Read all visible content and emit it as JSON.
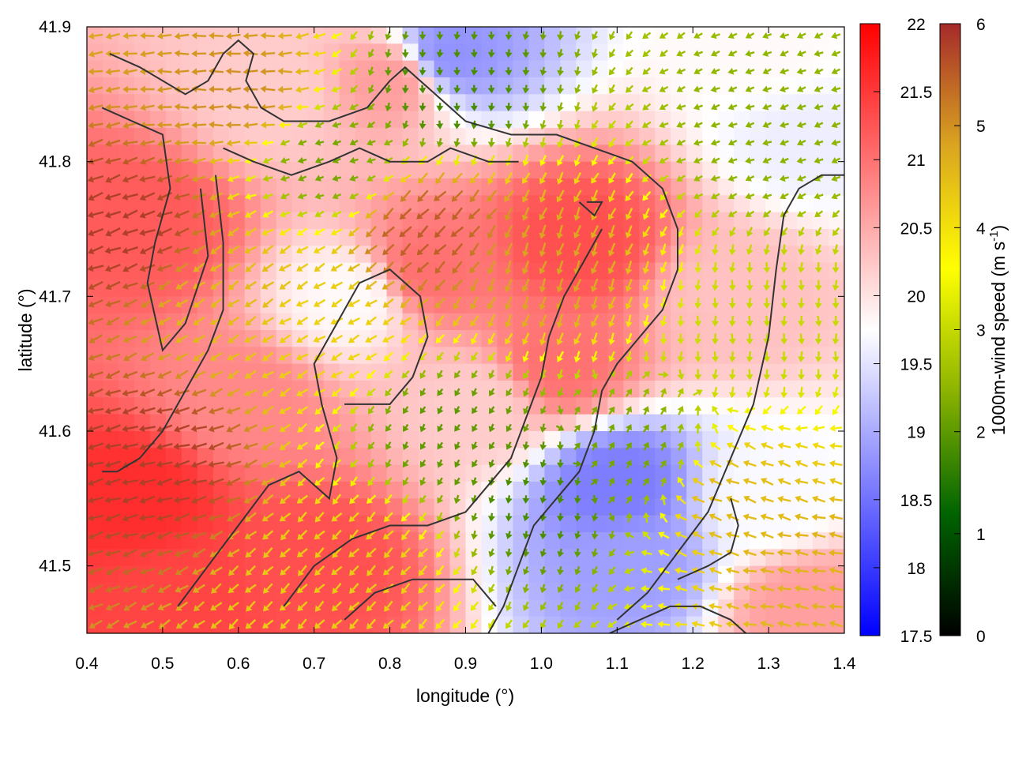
{
  "chart_data": {
    "type": "heatmap",
    "description_type": "temperature field with wind vectors (arrows) and contour lines",
    "xlabel": "longitude (°)",
    "ylabel": "latitude (°)",
    "xlim": [
      0.4,
      1.4
    ],
    "ylim": [
      41.45,
      41.9
    ],
    "x_ticks": [
      0.4,
      0.5,
      0.6,
      0.7,
      0.8,
      0.9,
      1.0,
      1.1,
      1.2,
      1.3,
      1.4
    ],
    "x_tick_labels": [
      "0.4",
      "0.5",
      "0.6",
      "0.7",
      "0.8",
      "0.9",
      "1.0",
      "1.1",
      "1.2",
      "1.3",
      "1.4"
    ],
    "y_ticks": [
      41.5,
      41.6,
      41.7,
      41.8,
      41.9
    ],
    "y_tick_labels": [
      "41.5",
      "41.6",
      "41.7",
      "41.8",
      "41.9"
    ],
    "colorbar_temperature": {
      "min": 17.5,
      "max": 22,
      "ticks": [
        17.5,
        18,
        18.5,
        19,
        19.5,
        20,
        20.5,
        21,
        21.5,
        22
      ],
      "tick_labels": [
        "17.5",
        "18",
        "18.5",
        "19",
        "19.5",
        "20",
        "20.5",
        "21",
        "21.5",
        "22"
      ],
      "colors": [
        "#0000ff",
        "#ffffff",
        "#ff0000"
      ]
    },
    "colorbar_wind": {
      "label": "1000m-wind speed (m s",
      "label_sup": "-1",
      "label_end": ")",
      "min": 0,
      "max": 6,
      "ticks": [
        0,
        1,
        2,
        3,
        4,
        5,
        6
      ],
      "tick_labels": [
        "0",
        "1",
        "2",
        "3",
        "4",
        "5",
        "6"
      ],
      "colors": [
        "#000000",
        "#006400",
        "#8cb400",
        "#ffff00",
        "#daa520",
        "#a52a2a"
      ]
    },
    "temperature_regions": [
      {
        "lon": 0.48,
        "lat": 41.75,
        "t": 21.2
      },
      {
        "lon": 0.47,
        "lat": 41.55,
        "t": 21.6
      },
      {
        "lon": 0.52,
        "lat": 41.48,
        "t": 21.4
      },
      {
        "lon": 0.7,
        "lat": 41.5,
        "t": 21.3
      },
      {
        "lon": 0.75,
        "lat": 41.7,
        "t": 19.8
      },
      {
        "lon": 0.85,
        "lat": 41.72,
        "t": 21.0
      },
      {
        "lon": 0.88,
        "lat": 41.88,
        "t": 18.8
      },
      {
        "lon": 1.05,
        "lat": 41.74,
        "t": 21.3
      },
      {
        "lon": 1.02,
        "lat": 41.65,
        "t": 21.0
      },
      {
        "lon": 0.92,
        "lat": 41.62,
        "t": 20.2
      },
      {
        "lon": 1.1,
        "lat": 41.56,
        "t": 18.6
      },
      {
        "lon": 1.12,
        "lat": 41.5,
        "t": 18.9
      },
      {
        "lon": 1.25,
        "lat": 41.7,
        "t": 20.3
      },
      {
        "lon": 1.3,
        "lat": 41.55,
        "t": 19.7
      },
      {
        "lon": 1.35,
        "lat": 41.82,
        "t": 19.6
      },
      {
        "lon": 1.3,
        "lat": 41.88,
        "t": 19.8
      },
      {
        "lon": 0.8,
        "lat": 41.86,
        "t": 20.6
      },
      {
        "lon": 0.6,
        "lat": 41.62,
        "t": 20.8
      },
      {
        "lon": 1.35,
        "lat": 41.47,
        "t": 20.6
      },
      {
        "lon": 0.65,
        "lat": 41.85,
        "t": 20.2
      }
    ],
    "wind_regions": [
      {
        "lon": 0.45,
        "lat": 41.75,
        "speed": 5.8,
        "dir": 200
      },
      {
        "lon": 0.48,
        "lat": 41.58,
        "speed": 5.8,
        "dir": 195
      },
      {
        "lon": 0.6,
        "lat": 41.7,
        "speed": 4.5,
        "dir": 215
      },
      {
        "lon": 0.7,
        "lat": 41.68,
        "speed": 4.2,
        "dir": 210
      },
      {
        "lon": 0.72,
        "lat": 41.8,
        "speed": 2.2,
        "dir": 200
      },
      {
        "lon": 0.85,
        "lat": 41.75,
        "speed": 5.5,
        "dir": 225
      },
      {
        "lon": 0.88,
        "lat": 41.85,
        "speed": 1.8,
        "dir": 270
      },
      {
        "lon": 1.0,
        "lat": 41.72,
        "speed": 4.8,
        "dir": 250
      },
      {
        "lon": 0.88,
        "lat": 41.6,
        "speed": 2.0,
        "dir": 240
      },
      {
        "lon": 1.0,
        "lat": 41.55,
        "speed": 1.8,
        "dir": 260
      },
      {
        "lon": 1.12,
        "lat": 41.58,
        "speed": 2.2,
        "dir": 60
      },
      {
        "lon": 1.25,
        "lat": 41.55,
        "speed": 4.5,
        "dir": 160
      },
      {
        "lon": 1.3,
        "lat": 41.68,
        "speed": 3.0,
        "dir": 270
      },
      {
        "lon": 1.3,
        "lat": 41.82,
        "speed": 2.4,
        "dir": 200
      },
      {
        "lon": 1.35,
        "lat": 41.5,
        "speed": 4.6,
        "dir": 170
      },
      {
        "lon": 0.75,
        "lat": 41.5,
        "speed": 4.3,
        "dir": 225
      },
      {
        "lon": 0.6,
        "lat": 41.85,
        "speed": 5.0,
        "dir": 180
      }
    ],
    "contours": [
      [
        [
          0.43,
          41.88
        ],
        [
          0.47,
          41.87
        ],
        [
          0.53,
          41.85
        ],
        [
          0.56,
          41.86
        ],
        [
          0.58,
          41.88
        ],
        [
          0.6,
          41.89
        ],
        [
          0.62,
          41.88
        ],
        [
          0.61,
          41.86
        ],
        [
          0.63,
          41.84
        ],
        [
          0.66,
          41.83
        ],
        [
          0.72,
          41.83
        ],
        [
          0.77,
          41.84
        ],
        [
          0.8,
          41.86
        ],
        [
          0.82,
          41.87
        ],
        [
          0.86,
          41.85
        ],
        [
          0.9,
          41.83
        ],
        [
          0.96,
          41.82
        ],
        [
          1.02,
          41.82
        ],
        [
          1.07,
          41.81
        ],
        [
          1.12,
          41.8
        ],
        [
          1.16,
          41.78
        ],
        [
          1.18,
          41.75
        ],
        [
          1.18,
          41.72
        ],
        [
          1.16,
          41.69
        ],
        [
          1.13,
          41.67
        ],
        [
          1.1,
          41.65
        ],
        [
          1.08,
          41.63
        ],
        [
          1.07,
          41.6
        ],
        [
          1.05,
          41.57
        ],
        [
          1.02,
          41.55
        ],
        [
          0.99,
          41.53
        ],
        [
          0.97,
          41.5
        ],
        [
          0.95,
          41.47
        ],
        [
          0.93,
          41.45
        ]
      ],
      [
        [
          0.58,
          41.81
        ],
        [
          0.62,
          41.8
        ],
        [
          0.67,
          41.79
        ],
        [
          0.72,
          41.8
        ],
        [
          0.76,
          41.81
        ],
        [
          0.8,
          41.8
        ],
        [
          0.85,
          41.8
        ],
        [
          0.88,
          41.81
        ],
        [
          0.93,
          41.8
        ],
        [
          0.97,
          41.8
        ]
      ],
      [
        [
          0.57,
          41.79
        ],
        [
          0.58,
          41.74
        ],
        [
          0.58,
          41.69
        ],
        [
          0.56,
          41.66
        ],
        [
          0.53,
          41.63
        ],
        [
          0.5,
          41.6
        ],
        [
          0.47,
          41.58
        ],
        [
          0.44,
          41.57
        ],
        [
          0.42,
          41.57
        ]
      ],
      [
        [
          0.42,
          41.84
        ],
        [
          0.46,
          41.83
        ],
        [
          0.5,
          41.82
        ],
        [
          0.51,
          41.78
        ],
        [
          0.49,
          41.74
        ],
        [
          0.48,
          41.71
        ],
        [
          0.5,
          41.66
        ],
        [
          0.53,
          41.68
        ],
        [
          0.56,
          41.73
        ],
        [
          0.55,
          41.78
        ]
      ],
      [
        [
          0.52,
          41.47
        ],
        [
          0.56,
          41.5
        ],
        [
          0.6,
          41.53
        ],
        [
          0.64,
          41.56
        ],
        [
          0.68,
          41.57
        ],
        [
          0.72,
          41.55
        ],
        [
          0.73,
          41.58
        ],
        [
          0.71,
          41.62
        ],
        [
          0.7,
          41.65
        ],
        [
          0.73,
          41.68
        ],
        [
          0.76,
          41.71
        ],
        [
          0.8,
          41.72
        ],
        [
          0.84,
          41.7
        ],
        [
          0.85,
          41.67
        ],
        [
          0.83,
          41.64
        ],
        [
          0.8,
          41.62
        ],
        [
          0.77,
          41.62
        ],
        [
          0.74,
          41.62
        ]
      ],
      [
        [
          0.66,
          41.47
        ],
        [
          0.7,
          41.5
        ],
        [
          0.75,
          41.52
        ],
        [
          0.8,
          41.53
        ],
        [
          0.85,
          41.53
        ],
        [
          0.9,
          41.54
        ],
        [
          0.93,
          41.56
        ],
        [
          0.96,
          41.58
        ],
        [
          0.98,
          41.61
        ],
        [
          1.0,
          41.64
        ],
        [
          1.01,
          41.67
        ],
        [
          1.03,
          41.7
        ],
        [
          1.05,
          41.72
        ],
        [
          1.07,
          41.74
        ],
        [
          1.08,
          41.75
        ]
      ],
      [
        [
          1.1,
          41.46
        ],
        [
          1.14,
          41.48
        ],
        [
          1.18,
          41.51
        ],
        [
          1.22,
          41.54
        ],
        [
          1.25,
          41.58
        ],
        [
          1.28,
          41.62
        ],
        [
          1.3,
          41.67
        ],
        [
          1.31,
          41.72
        ],
        [
          1.32,
          41.76
        ],
        [
          1.34,
          41.78
        ],
        [
          1.37,
          41.79
        ],
        [
          1.4,
          41.79
        ]
      ],
      [
        [
          1.18,
          41.49
        ],
        [
          1.22,
          41.5
        ],
        [
          1.25,
          41.51
        ],
        [
          1.26,
          41.53
        ],
        [
          1.25,
          41.55
        ]
      ],
      [
        [
          0.74,
          41.46
        ],
        [
          0.78,
          41.48
        ],
        [
          0.83,
          41.49
        ],
        [
          0.87,
          41.49
        ],
        [
          0.91,
          41.49
        ],
        [
          0.94,
          41.47
        ]
      ],
      [
        [
          1.09,
          41.45
        ],
        [
          1.13,
          41.46
        ],
        [
          1.17,
          41.47
        ],
        [
          1.21,
          41.47
        ],
        [
          1.25,
          41.46
        ],
        [
          1.27,
          41.45
        ]
      ],
      [
        [
          1.06,
          41.77
        ],
        [
          1.08,
          41.77
        ],
        [
          1.07,
          41.76
        ],
        [
          1.05,
          41.77
        ]
      ]
    ]
  }
}
